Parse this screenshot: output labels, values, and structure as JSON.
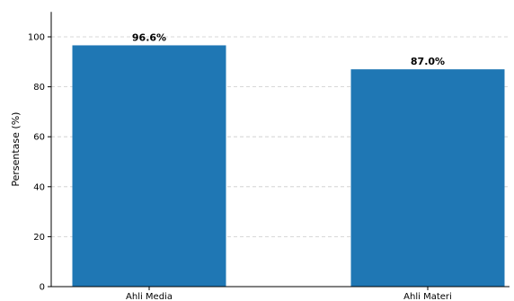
{
  "chart_data": {
    "type": "bar",
    "title": "",
    "categories": [
      "Ahli Media",
      "Ahli Materi"
    ],
    "values": [
      96.6,
      87.0
    ],
    "data_labels": [
      "96.6%",
      "87.0%"
    ],
    "xlabel": "",
    "ylabel": "Persentase (%)",
    "ylim": [
      0,
      110
    ],
    "yticks": [
      0,
      20,
      40,
      60,
      80,
      100
    ],
    "ytick_labels": [
      "0",
      "20",
      "40",
      "60",
      "80",
      "100"
    ],
    "grid": "horizontal dashed",
    "bar_color": "#1f77b4",
    "grid_color": "#cccccc"
  }
}
